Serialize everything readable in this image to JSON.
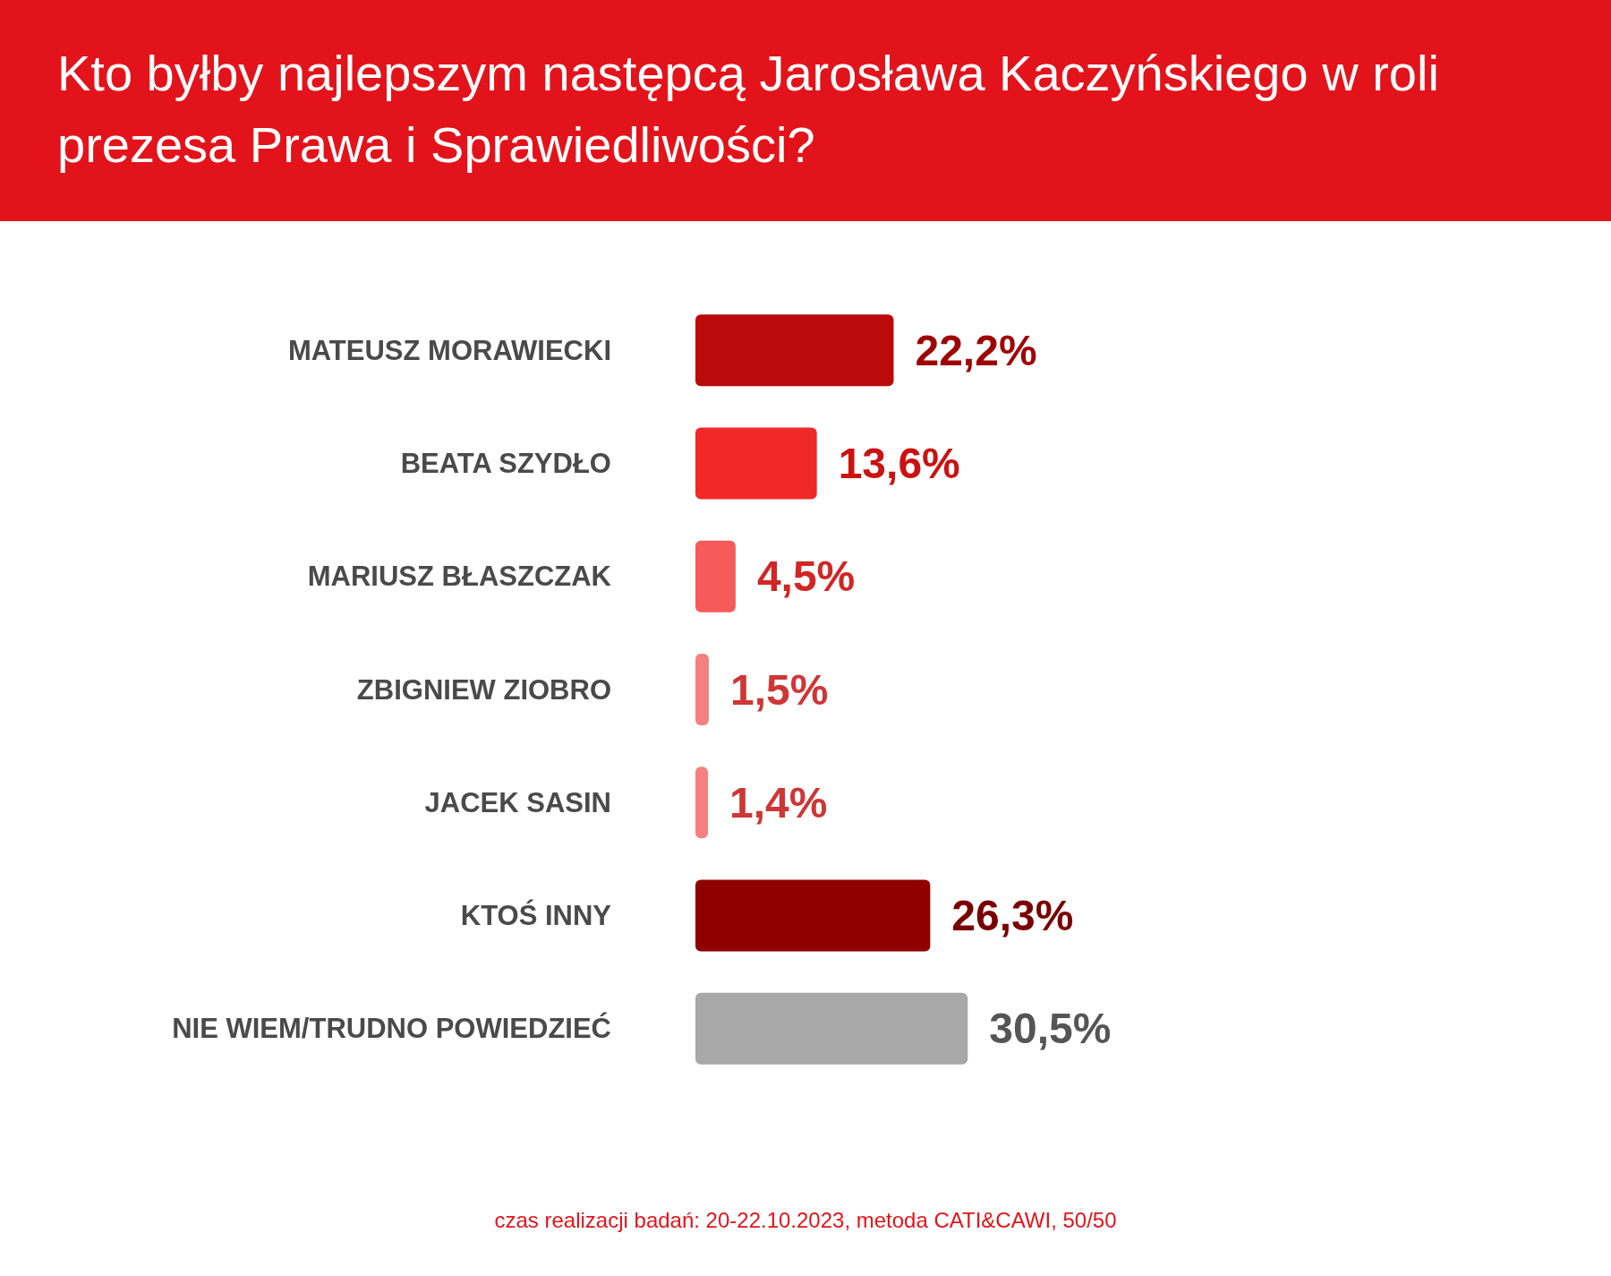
{
  "chart_data": {
    "type": "bar",
    "orientation": "horizontal",
    "title": "Kto byłby najlepszym następcą Jarosława Kaczyńskiego w roli prezesa Prawa i Sprawiedliwości?",
    "categories": [
      "MATEUSZ MORAWIECKI",
      "BEATA SZYDŁO",
      "MARIUSZ BŁASZCZAK",
      "ZBIGNIEW ZIOBRO",
      "JACEK SASIN",
      "KTOŚ INNY",
      "NIE WIEM/TRUDNO POWIEDZIEĆ"
    ],
    "values": [
      22.2,
      13.6,
      4.5,
      1.5,
      1.4,
      26.3,
      30.5
    ],
    "value_labels": [
      "22,2%",
      "13,6%",
      "4,5%",
      "1,5%",
      "1,4%",
      "26,3%",
      "30,5%"
    ],
    "colors": [
      "#bb0a0a",
      "#f02828",
      "#f65a5a",
      "#f48080",
      "#f48080",
      "#8f0000",
      "#a8a8a8"
    ],
    "tick_labels": "y",
    "annotations": [
      "czas realizacji badań: 20-22.10.2023, metoda CATI&CAWI, 50/50"
    ]
  }
}
